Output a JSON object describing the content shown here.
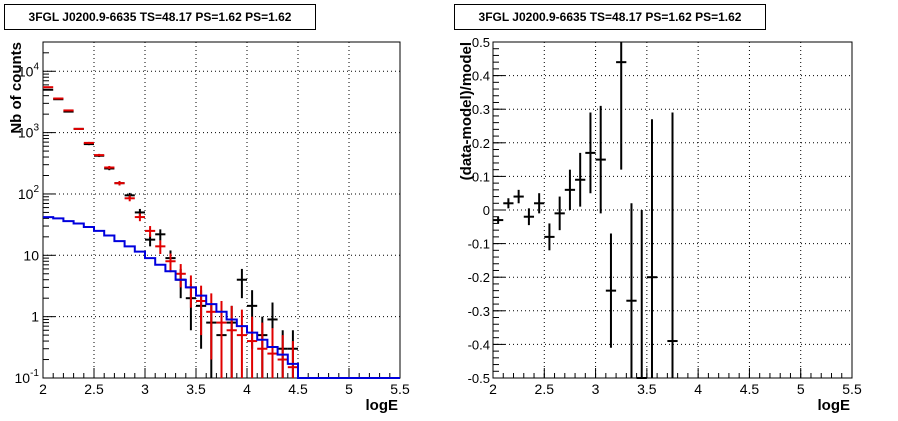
{
  "chart_data": [
    {
      "type": "line",
      "title": "3FGL J0200.9-6635 TS=48.17 PS=1.62 PS=1.62",
      "xlabel": "logE",
      "ylabel": "Nb of counts",
      "xlim": [
        2,
        5.5
      ],
      "ylim": [
        0.1,
        30000
      ],
      "y_scale": "log",
      "grid": true,
      "x_ticks": [
        "2",
        "2.5",
        "3",
        "3.5",
        "4",
        "4.5",
        "5",
        "5.5"
      ],
      "y_ticks": [
        "10^-1",
        "1",
        "10",
        "10^2",
        "10^3",
        "10^4"
      ],
      "colors": {
        "data_black": "#000000",
        "data_red": "#e00000",
        "model": "#0000dd"
      },
      "series": [
        {
          "color": "#000000",
          "x": [
            2.05,
            2.15,
            2.25,
            2.35,
            2.45,
            2.55,
            2.65,
            2.75,
            2.85,
            2.95,
            3.05,
            3.15,
            3.25,
            3.35,
            3.45,
            3.55,
            3.65,
            3.75,
            3.85,
            3.95,
            4.05,
            4.15,
            4.25,
            4.35,
            4.45
          ],
          "y": [
            5000,
            3500,
            2200,
            1150,
            650,
            420,
            260,
            150,
            95,
            50,
            18,
            22,
            9,
            4,
            2,
            1.5,
            0.8,
            0.5,
            0.8,
            4,
            1.5,
            0.5,
            0.9,
            0.3,
            0.3
          ],
          "yerr_low": [
            70,
            60,
            45,
            33,
            25,
            20,
            16,
            12,
            9,
            7,
            4,
            4.5,
            3,
            2,
            1.4,
            1.2,
            0.8,
            0.5,
            0.7,
            2,
            1.2,
            0.5,
            0.8,
            0.3,
            0.3
          ],
          "yerr_high": [
            70,
            60,
            45,
            33,
            25,
            20,
            16,
            12,
            9,
            7,
            4,
            4.5,
            3,
            2,
            1.4,
            1.2,
            0.8,
            0.5,
            0.7,
            2,
            1.2,
            0.5,
            0.8,
            0.3,
            0.3
          ]
        },
        {
          "color": "#e00000",
          "x": [
            2.05,
            2.15,
            2.25,
            2.35,
            2.45,
            2.55,
            2.65,
            2.75,
            2.85,
            2.95,
            3.05,
            3.15,
            3.25,
            3.35,
            3.45,
            3.55,
            3.65,
            3.75,
            3.85,
            3.95,
            4.05,
            4.15,
            4.25,
            4.35,
            4.45
          ],
          "y": [
            5500,
            3600,
            2300,
            1150,
            680,
            430,
            270,
            150,
            85,
            42,
            25,
            14,
            8,
            5,
            3,
            1.8,
            1.2,
            0.8,
            0.6,
            0.5,
            0.4,
            0.3,
            0.25,
            0.2,
            0.15
          ],
          "yerr_low": [
            70,
            60,
            45,
            33,
            25,
            20,
            16,
            12,
            9,
            6,
            5,
            3.5,
            2.7,
            2,
            1.6,
            1.3,
            1.0,
            0.8,
            0.6,
            0.5,
            0.4,
            0.3,
            0.25,
            0.2,
            0.15
          ],
          "yerr_high": [
            70,
            60,
            45,
            33,
            25,
            20,
            16,
            12,
            9,
            6,
            5,
            3.5,
            2.7,
            2.2,
            1.7,
            1.4,
            1.2,
            1.0,
            0.9,
            0.8,
            0.6,
            0.5,
            0.4,
            0.3,
            0.25
          ]
        },
        {
          "color": "#0000dd",
          "step": true,
          "x": [
            2.05,
            2.15,
            2.25,
            2.35,
            2.45,
            2.55,
            2.65,
            2.75,
            2.85,
            2.95,
            3.05,
            3.15,
            3.25,
            3.35,
            3.45,
            3.55,
            3.65,
            3.75,
            3.85,
            3.95,
            4.05,
            4.15,
            4.25,
            4.35,
            4.45,
            4.55,
            4.65,
            4.75,
            4.85,
            4.95,
            5.05,
            5.15,
            5.25,
            5.35,
            5.45
          ],
          "y": [
            42,
            40,
            36,
            33,
            29,
            25,
            21,
            17,
            14,
            11.5,
            9,
            7,
            5.5,
            4,
            3,
            2.2,
            1.6,
            1.2,
            0.9,
            0.7,
            0.55,
            0.42,
            0.32,
            0.24,
            0.17,
            0.1,
            0.1,
            0.1,
            0.1,
            0.1,
            0.1,
            0.1,
            0.1,
            0.1,
            0.1
          ]
        }
      ]
    },
    {
      "type": "scatter",
      "title": "3FGL J0200.9-6635 TS=48.17 PS=1.62 PS=1.62",
      "xlabel": "logE",
      "ylabel": "(data-model)/model",
      "xlim": [
        2,
        5.5
      ],
      "ylim": [
        -0.5,
        0.5
      ],
      "grid": true,
      "x_ticks": [
        "2",
        "2.5",
        "3",
        "3.5",
        "4",
        "4.5",
        "5",
        "5.5"
      ],
      "y_ticks": [
        "-0.5",
        "-0.4",
        "-0.3",
        "-0.2",
        "-0.1",
        "0",
        "0.1",
        "0.2",
        "0.3",
        "0.4",
        "0.5"
      ],
      "series": [
        {
          "color": "#000000",
          "x": [
            2.05,
            2.15,
            2.25,
            2.35,
            2.45,
            2.55,
            2.65,
            2.75,
            2.85,
            2.95,
            3.05,
            3.15,
            3.25,
            3.35,
            3.45,
            3.55,
            3.75
          ],
          "y": [
            -0.03,
            0.02,
            0.04,
            -0.02,
            0.02,
            -0.08,
            -0.01,
            0.06,
            0.09,
            0.17,
            0.15,
            -0.24,
            0.44,
            -0.27,
            -0.5,
            -0.2,
            -0.39
          ],
          "yerr": [
            0.01,
            0.015,
            0.02,
            0.025,
            0.03,
            0.04,
            0.05,
            0.06,
            0.08,
            0.12,
            0.16,
            0.17,
            0.32,
            0.29,
            0.5,
            0.47,
            0.68
          ]
        }
      ]
    }
  ]
}
